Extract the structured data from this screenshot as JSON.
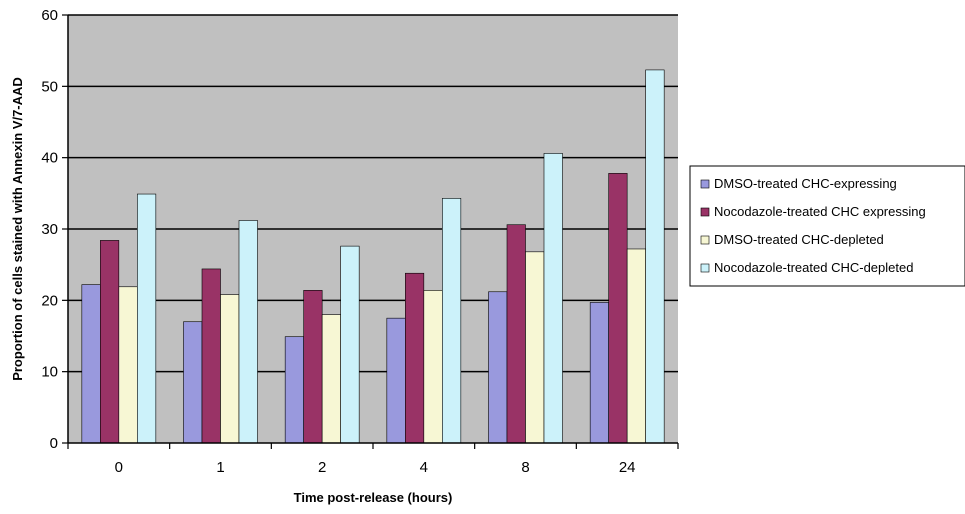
{
  "chart_data": {
    "type": "bar",
    "title": "",
    "xlabel": "Time post-release (hours)",
    "ylabel": "Proportion of cells stained with Annexin V/7-AAD",
    "ylim": [
      0,
      60
    ],
    "yticks": [
      0,
      10,
      20,
      30,
      40,
      50,
      60
    ],
    "grid": "horizontal",
    "legend_position": "right",
    "plot_background": "#c0c0c0",
    "categories": [
      "0",
      "1",
      "2",
      "4",
      "8",
      "24"
    ],
    "series": [
      {
        "name": "DMSO-treated CHC-expressing",
        "color": "#9999dd",
        "values": [
          22.2,
          17.0,
          14.9,
          17.5,
          21.2,
          19.7
        ]
      },
      {
        "name": "Nocodazole-treated CHC expressing",
        "color": "#993366",
        "values": [
          28.4,
          24.4,
          21.4,
          23.8,
          30.6,
          37.8
        ]
      },
      {
        "name": "DMSO-treated CHC-depleted",
        "color": "#f7f7d4",
        "values": [
          21.9,
          20.8,
          18.0,
          21.4,
          26.8,
          27.2
        ]
      },
      {
        "name": "Nocodazole-treated CHC-depleted",
        "color": "#ccf2fa",
        "values": [
          34.9,
          31.2,
          27.6,
          34.3,
          40.6,
          52.3
        ]
      }
    ]
  }
}
